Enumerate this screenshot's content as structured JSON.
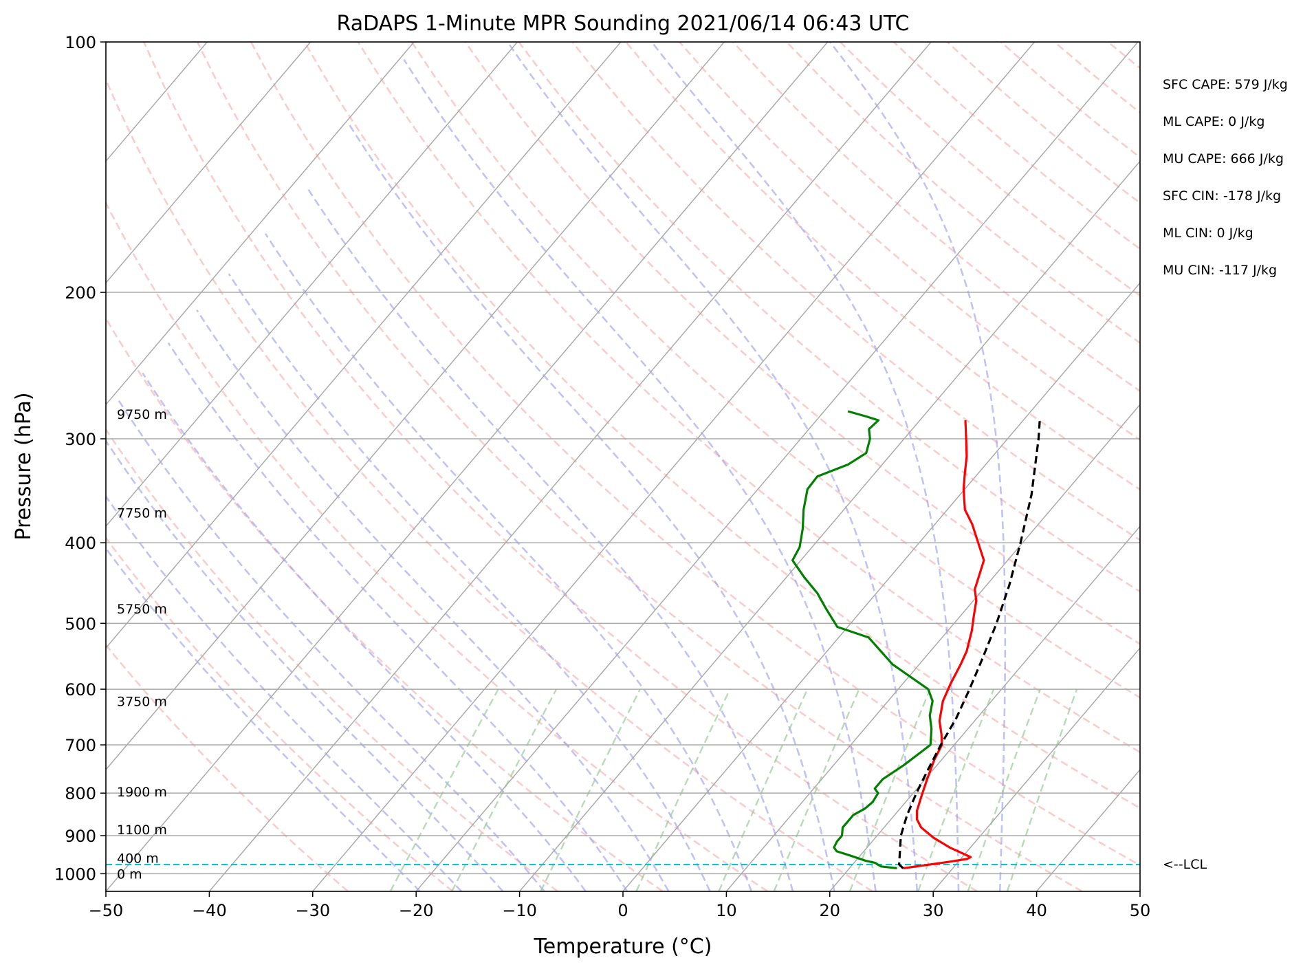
{
  "chart_data": {
    "type": "line",
    "subtype": "skew-T log-p sounding",
    "title": "RaDAPS 1-Minute MPR Sounding 2021/06/14 06:43 UTC",
    "xlabel": "Temperature (°C)",
    "ylabel": "Pressure (hPa)",
    "xlim": [
      -50,
      50
    ],
    "ylim": [
      1050,
      100
    ],
    "y_scale": "log",
    "x_ticks": [
      "−50",
      "−40",
      "−30",
      "−20",
      "−10",
      "0",
      "10",
      "20",
      "30",
      "40",
      "50"
    ],
    "y_ticks": [
      {
        "p": 100,
        "label": "100"
      },
      {
        "p": 200,
        "label": "200"
      },
      {
        "p": 300,
        "label": "300"
      },
      {
        "p": 400,
        "label": "400"
      },
      {
        "p": 500,
        "label": "500"
      },
      {
        "p": 600,
        "label": "600"
      },
      {
        "p": 700,
        "label": "700"
      },
      {
        "p": 800,
        "label": "800"
      },
      {
        "p": 900,
        "label": "900"
      },
      {
        "p": 1000,
        "label": "1000"
      }
    ],
    "grid": true,
    "height_labels": [
      {
        "p": 280,
        "label": "9750 m"
      },
      {
        "p": 368,
        "label": "7750 m"
      },
      {
        "p": 480,
        "label": "5750 m"
      },
      {
        "p": 620,
        "label": "3750 m"
      },
      {
        "p": 797,
        "label": "1900 m"
      },
      {
        "p": 885,
        "label": "1100 m"
      },
      {
        "p": 957,
        "label": "400 m"
      },
      {
        "p": 1000,
        "label": "0 m"
      }
    ],
    "lcl": {
      "p": 975,
      "label": "<--LCL",
      "color": "#17becf"
    },
    "stats": [
      "SFC CAPE: 579 J/kg",
      "ML CAPE: 0 J/kg",
      "MU CAPE: 666 J/kg",
      "SFC CIN: -178 J/kg",
      "ML CIN: 0 J/kg",
      "MU CIN: -117 J/kg"
    ],
    "series": [
      {
        "key": "temperature",
        "color": "#ff0000",
        "style": "solid",
        "points": [
          [
            985,
            25.2
          ],
          [
            968,
            29.0
          ],
          [
            960,
            30.6
          ],
          [
            955,
            30.8
          ],
          [
            945,
            29.7
          ],
          [
            930,
            28.0
          ],
          [
            905,
            25.6
          ],
          [
            880,
            23.6
          ],
          [
            860,
            22.5
          ],
          [
            840,
            21.8
          ],
          [
            805,
            21.0
          ],
          [
            770,
            20.2
          ],
          [
            730,
            19.3
          ],
          [
            700,
            18.8
          ],
          [
            680,
            17.9
          ],
          [
            655,
            16.6
          ],
          [
            620,
            15.3
          ],
          [
            590,
            14.6
          ],
          [
            560,
            14.0
          ],
          [
            540,
            13.5
          ],
          [
            510,
            12.3
          ],
          [
            490,
            11.3
          ],
          [
            470,
            10.3
          ],
          [
            455,
            9.2
          ],
          [
            420,
            7.7
          ],
          [
            400,
            5.7
          ],
          [
            380,
            3.6
          ],
          [
            365,
            1.7
          ],
          [
            345,
            -0.1
          ],
          [
            330,
            -1.3
          ],
          [
            315,
            -2.5
          ],
          [
            300,
            -4.0
          ],
          [
            285,
            -5.6
          ]
        ]
      },
      {
        "key": "dewpoint",
        "color": "#008000",
        "style": "solid",
        "points": [
          [
            985,
            24.6
          ],
          [
            980,
            22.9
          ],
          [
            970,
            22.0
          ],
          [
            965,
            21.0
          ],
          [
            955,
            19.6
          ],
          [
            948,
            18.6
          ],
          [
            940,
            17.4
          ],
          [
            930,
            16.8
          ],
          [
            915,
            16.6
          ],
          [
            900,
            16.6
          ],
          [
            880,
            16.0
          ],
          [
            865,
            16.0
          ],
          [
            850,
            16.0
          ],
          [
            835,
            16.6
          ],
          [
            820,
            16.8
          ],
          [
            800,
            16.6
          ],
          [
            790,
            15.9
          ],
          [
            770,
            15.9
          ],
          [
            740,
            16.8
          ],
          [
            700,
            17.7
          ],
          [
            670,
            16.5
          ],
          [
            645,
            15.2
          ],
          [
            620,
            14.3
          ],
          [
            600,
            12.9
          ],
          [
            580,
            10.2
          ],
          [
            560,
            7.4
          ],
          [
            520,
            2.9
          ],
          [
            505,
            -1.0
          ],
          [
            480,
            -3.6
          ],
          [
            460,
            -5.7
          ],
          [
            440,
            -8.3
          ],
          [
            420,
            -10.8
          ],
          [
            405,
            -11.2
          ],
          [
            385,
            -12.4
          ],
          [
            365,
            -13.9
          ],
          [
            345,
            -15.2
          ],
          [
            333,
            -15.3
          ],
          [
            322,
            -13.3
          ],
          [
            312,
            -12.5
          ],
          [
            300,
            -13.3
          ],
          [
            292,
            -14.2
          ],
          [
            285,
            -14.0
          ],
          [
            282,
            -15.5
          ],
          [
            278,
            -17.7
          ]
        ]
      },
      {
        "key": "parcel",
        "color": "#000000",
        "style": "dashed",
        "points": [
          [
            985,
            25.2
          ],
          [
            975,
            24.5
          ],
          [
            940,
            23.5
          ],
          [
            900,
            22.3
          ],
          [
            850,
            21.2
          ],
          [
            800,
            20.3
          ],
          [
            750,
            19.5
          ],
          [
            700,
            18.7
          ],
          [
            650,
            18.0
          ],
          [
            600,
            16.9
          ],
          [
            550,
            15.6
          ],
          [
            500,
            14.1
          ],
          [
            450,
            12.2
          ],
          [
            400,
            9.8
          ],
          [
            350,
            6.9
          ],
          [
            300,
            3.0
          ],
          [
            283,
            1.4
          ]
        ]
      }
    ],
    "background_lines": {
      "isotherm_color": "#aaaaaa",
      "dry_adiabat_color": "#f4a4a4",
      "moist_adiabat_color": "#9a9af0",
      "mixing_ratio_color": "#98cc98"
    }
  }
}
